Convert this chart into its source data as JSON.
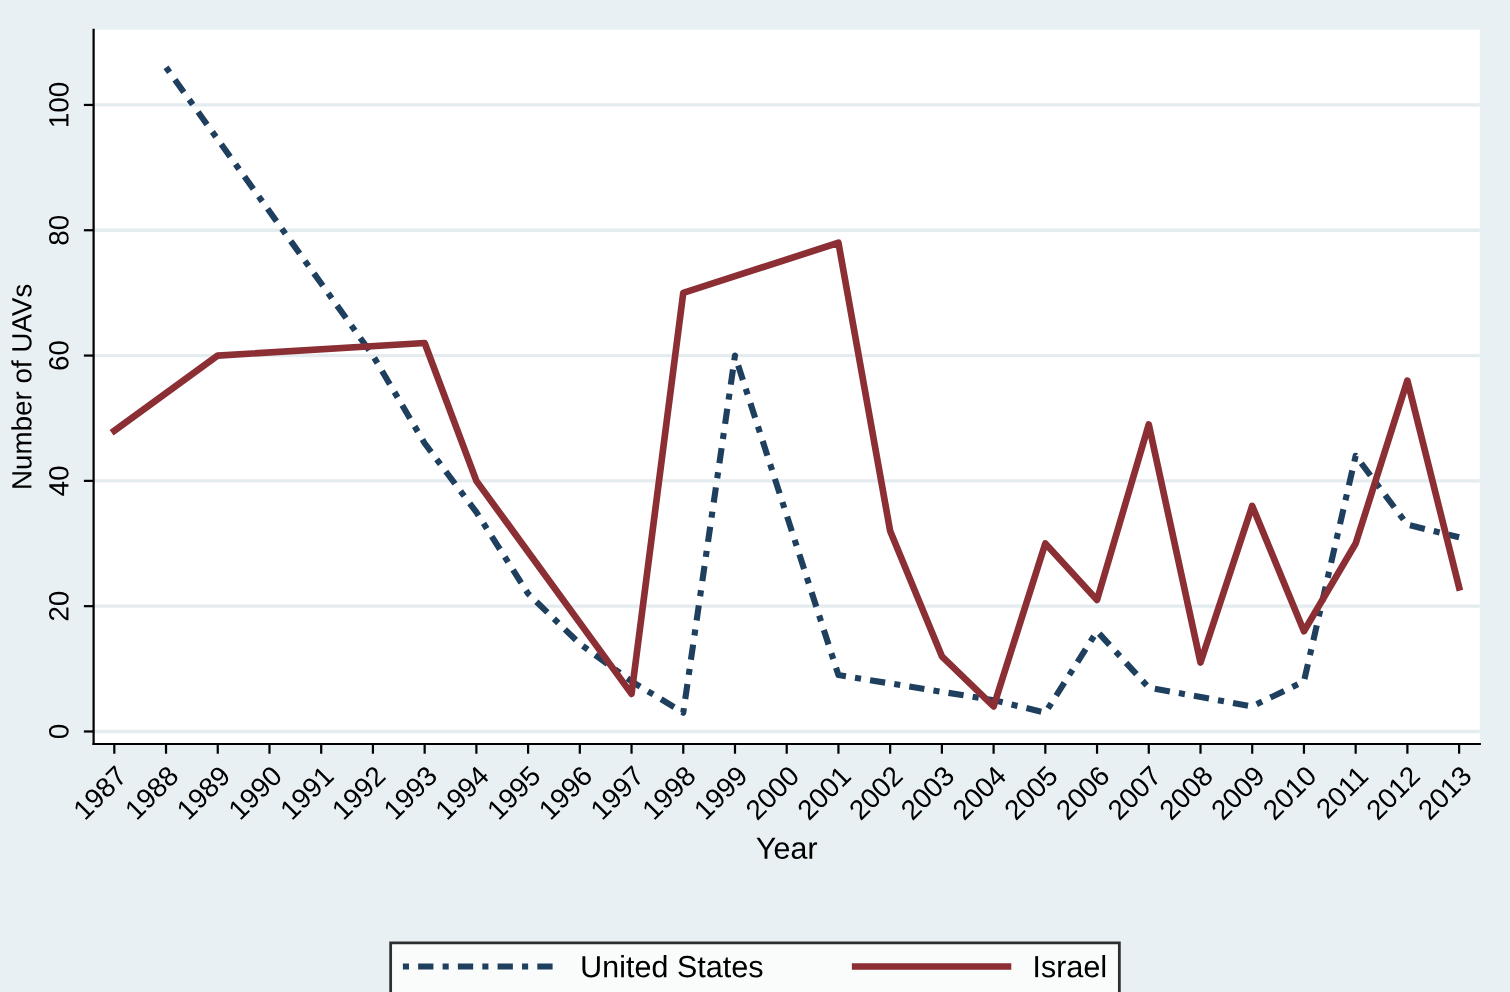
{
  "chart_data": {
    "type": "line",
    "xlabel": "Year",
    "ylabel": "Number of UAVs",
    "xlim": [
      1986.6,
      2013.4
    ],
    "xticks": [
      1987,
      1988,
      1989,
      1990,
      1991,
      1992,
      1993,
      1994,
      1995,
      1996,
      1997,
      1998,
      1999,
      2000,
      2001,
      2002,
      2003,
      2004,
      2005,
      2006,
      2007,
      2008,
      2009,
      2010,
      2011,
      2012,
      2013
    ],
    "ylim": [
      -2,
      112
    ],
    "yticks": [
      0,
      20,
      40,
      60,
      80,
      100
    ],
    "grid": "y",
    "legend": "bottom",
    "series": [
      {
        "name": "United States",
        "color": "#1f3f5f",
        "line_style": "dotted",
        "x": [
          1988,
          1992,
          1993,
          1994,
          1995,
          1996,
          1997,
          1998,
          1999,
          2001,
          2004,
          2005,
          2006,
          2007,
          2009,
          2010,
          2011,
          2012,
          2013
        ],
        "values": [
          106,
          60,
          46,
          35,
          22,
          14,
          8,
          3,
          60,
          9,
          5,
          3,
          16,
          7,
          4,
          8,
          44,
          33,
          31
        ]
      },
      {
        "name": "Israel",
        "color": "#8b2f35",
        "line_style": "solid",
        "x": [
          1987,
          1989,
          1993,
          1994,
          1997,
          1998,
          2001,
          2002,
          2003,
          2004,
          2005,
          2006,
          2007,
          2008,
          2009,
          2010,
          2011,
          2012,
          2013
        ],
        "values": [
          48,
          60,
          62,
          40,
          6,
          70,
          78,
          32,
          12,
          4,
          30,
          21,
          49,
          11,
          36,
          16,
          30,
          56,
          23
        ]
      }
    ]
  }
}
